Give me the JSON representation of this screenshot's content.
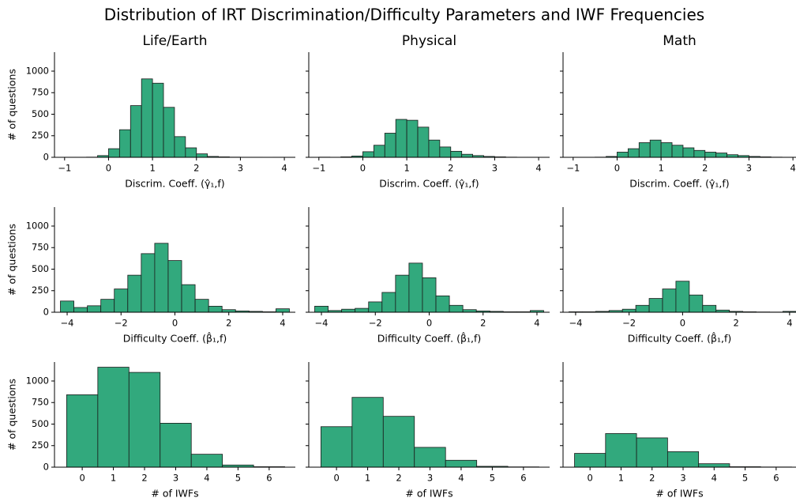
{
  "title": "Distribution of IRT Discrimination/Difficulty Parameters and IWF Frequencies",
  "chart_data": [
    {
      "type": "histogram",
      "title": "Life/Earth",
      "xlabel": "Discrim. Coeff. (γ̂₁,f)",
      "ylabel": "# of questions",
      "color": "#32a97d",
      "show_ytick_labels": true,
      "bins": [
        -1,
        -0.75,
        -0.5,
        -0.25,
        0,
        0.25,
        0.5,
        0.75,
        1,
        1.25,
        1.5,
        1.75,
        2,
        2.25,
        2.5,
        2.75,
        3,
        3.25,
        3.5,
        3.75,
        4
      ],
      "values": [
        1,
        1,
        2,
        20,
        100,
        320,
        600,
        910,
        860,
        580,
        240,
        110,
        40,
        10,
        5,
        2,
        1,
        1,
        0,
        1
      ],
      "xlim": [
        -1.23,
        4.25
      ],
      "ylim": [
        0,
        1220
      ],
      "xticks": [
        {
          "value": -1,
          "label": "−1"
        },
        0,
        1,
        2,
        3,
        4
      ],
      "yticks": [
        0,
        250,
        500,
        750,
        1000
      ]
    },
    {
      "type": "histogram",
      "title": "Physical",
      "xlabel": "Discrim. Coeff. (γ̂₁,f)",
      "color": "#32a97d",
      "show_ytick_labels": false,
      "bins": [
        -1,
        -0.75,
        -0.5,
        -0.25,
        0,
        0.25,
        0.5,
        0.75,
        1,
        1.25,
        1.5,
        1.75,
        2,
        2.25,
        2.5,
        2.75,
        3,
        3.25,
        3.5,
        3.75,
        4
      ],
      "values": [
        2,
        1,
        5,
        15,
        65,
        140,
        280,
        440,
        430,
        350,
        200,
        120,
        70,
        35,
        20,
        10,
        5,
        2,
        1,
        1
      ],
      "xlim": [
        -1.23,
        4.25
      ],
      "ylim": [
        0,
        1220
      ],
      "xticks": [
        {
          "value": -1,
          "label": "−1"
        },
        0,
        1,
        2,
        3,
        4
      ],
      "yticks": [
        0,
        250,
        500,
        750,
        1000
      ]
    },
    {
      "type": "histogram",
      "title": "Math",
      "xlabel": "Discrim. Coeff. (γ̂₁,f)",
      "color": "#32a97d",
      "show_ytick_labels": false,
      "bins": [
        -1,
        -0.75,
        -0.5,
        -0.25,
        0,
        0.25,
        0.5,
        0.75,
        1,
        1.25,
        1.5,
        1.75,
        2,
        2.25,
        2.5,
        2.75,
        3,
        3.25,
        3.5,
        3.75,
        4
      ],
      "values": [
        1,
        1,
        2,
        10,
        60,
        100,
        170,
        200,
        170,
        140,
        110,
        80,
        60,
        50,
        30,
        20,
        10,
        5,
        2,
        1
      ],
      "xlim": [
        -1.23,
        4.07
      ],
      "ylim": [
        0,
        1220
      ],
      "xticks": [
        {
          "value": -1,
          "label": "−1"
        },
        0,
        1,
        2,
        3,
        4
      ],
      "yticks": [
        0,
        250,
        500,
        750,
        1000
      ]
    },
    {
      "type": "histogram",
      "xlabel": "Difficulty Coeff. (β̂₁,f)",
      "ylabel": "# of questions",
      "color": "#32a97d",
      "show_ytick_labels": true,
      "bins": [
        -4.25,
        -3.75,
        -3.25,
        -2.75,
        -2.25,
        -1.75,
        -1.25,
        -0.75,
        -0.25,
        0.25,
        0.75,
        1.25,
        1.75,
        2.25,
        2.75,
        3.25,
        3.75,
        4.25
      ],
      "values": [
        130,
        55,
        75,
        150,
        270,
        430,
        680,
        800,
        600,
        320,
        150,
        70,
        30,
        15,
        10,
        5,
        40
      ],
      "xlim": [
        -4.47,
        4.47
      ],
      "ylim": [
        0,
        1220
      ],
      "xticks": [
        {
          "value": -4,
          "label": "−4"
        },
        {
          "value": -2,
          "label": "−2"
        },
        0,
        2,
        4
      ],
      "yticks": [
        0,
        250,
        500,
        750,
        1000
      ]
    },
    {
      "type": "histogram",
      "xlabel": "Difficulty Coeff. (β̂₁,f)",
      "color": "#32a97d",
      "show_ytick_labels": false,
      "bins": [
        -4.25,
        -3.75,
        -3.25,
        -2.75,
        -2.25,
        -1.75,
        -1.25,
        -0.75,
        -0.25,
        0.25,
        0.75,
        1.25,
        1.75,
        2.25,
        2.75,
        3.25,
        3.75,
        4.25
      ],
      "values": [
        70,
        20,
        35,
        45,
        120,
        230,
        430,
        570,
        400,
        190,
        80,
        30,
        15,
        10,
        5,
        5,
        20
      ],
      "xlim": [
        -4.47,
        4.47
      ],
      "ylim": [
        0,
        1220
      ],
      "xticks": [
        {
          "value": -4,
          "label": "−4"
        },
        {
          "value": -2,
          "label": "−2"
        },
        0,
        2,
        4
      ],
      "yticks": [
        0,
        250,
        500,
        750,
        1000
      ]
    },
    {
      "type": "histogram",
      "xlabel": "Difficulty Coeff. (β̂₁,f)",
      "color": "#32a97d",
      "show_ytick_labels": false,
      "bins": [
        -4.25,
        -3.75,
        -3.25,
        -2.75,
        -2.25,
        -1.75,
        -1.25,
        -0.75,
        -0.25,
        0.25,
        0.75,
        1.25,
        1.75,
        2.25,
        2.75,
        3.25,
        3.75,
        4.25
      ],
      "values": [
        5,
        5,
        10,
        20,
        35,
        80,
        160,
        270,
        360,
        200,
        80,
        25,
        10,
        5,
        3,
        2,
        10
      ],
      "xlim": [
        -4.47,
        4.24
      ],
      "ylim": [
        0,
        1220
      ],
      "xticks": [
        {
          "value": -4,
          "label": "−4"
        },
        {
          "value": -2,
          "label": "−2"
        },
        0,
        2,
        4
      ],
      "yticks": [
        0,
        250,
        500,
        750,
        1000
      ]
    },
    {
      "type": "histogram",
      "xlabel": "# of IWFs",
      "ylabel": "# of questions",
      "color": "#32a97d",
      "show_ytick_labels": true,
      "bins": [
        -0.5,
        0.5,
        1.5,
        2.5,
        3.5,
        4.5,
        5.5,
        6.5
      ],
      "values": [
        840,
        1160,
        1100,
        510,
        150,
        25,
        5
      ],
      "xlim": [
        -0.89,
        6.84
      ],
      "ylim": [
        0,
        1220
      ],
      "xticks": [
        0,
        1,
        2,
        3,
        4,
        5,
        6
      ],
      "yticks": [
        0,
        250,
        500,
        750,
        1000
      ]
    },
    {
      "type": "histogram",
      "xlabel": "# of IWFs",
      "color": "#32a97d",
      "show_ytick_labels": false,
      "bins": [
        -0.5,
        0.5,
        1.5,
        2.5,
        3.5,
        4.5,
        5.5,
        6.5
      ],
      "values": [
        470,
        810,
        590,
        230,
        80,
        10,
        3
      ],
      "xlim": [
        -0.89,
        6.84
      ],
      "ylim": [
        0,
        1220
      ],
      "xticks": [
        0,
        1,
        2,
        3,
        4,
        5,
        6
      ],
      "yticks": [
        0,
        250,
        500,
        750,
        1000
      ]
    },
    {
      "type": "histogram",
      "xlabel": "# of IWFs",
      "color": "#32a97d",
      "show_ytick_labels": false,
      "bins": [
        -0.5,
        0.5,
        1.5,
        2.5,
        3.5,
        4.5,
        5.5,
        6.5
      ],
      "values": [
        160,
        390,
        340,
        180,
        40,
        5,
        2
      ],
      "xlim": [
        -0.87,
        6.64
      ],
      "ylim": [
        0,
        1220
      ],
      "xticks": [
        0,
        1,
        2,
        3,
        4,
        5,
        6
      ],
      "yticks": [
        0,
        250,
        500,
        750,
        1000
      ]
    }
  ]
}
